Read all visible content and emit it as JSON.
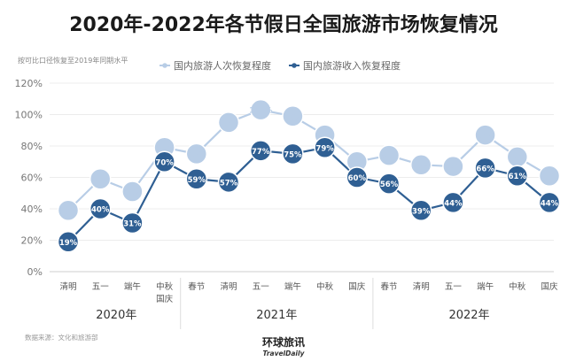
{
  "chart_data": {
    "type": "line",
    "title": "2020年-2022年各节假日全国旅游市场恢复情况",
    "subtitle": "按可比口径恢复至2019年同期水平",
    "source": "数据来源：文化和旅游部",
    "brand": {
      "name": "环球旅讯",
      "sub": "TravelDaily"
    },
    "ylim": [
      0,
      120
    ],
    "yticks": [
      "0%",
      "20%",
      "40%",
      "60%",
      "80%",
      "100%",
      "120%"
    ],
    "categories": [
      "清明",
      "五一",
      "端午",
      "中秋\n国庆",
      "春节",
      "清明",
      "五一",
      "端午",
      "中秋",
      "国庆",
      "春节",
      "清明",
      "五一",
      "端午",
      "中秋",
      "国庆"
    ],
    "years": [
      {
        "label": "2020年",
        "from": 0,
        "to": 3
      },
      {
        "label": "2021年",
        "from": 4,
        "to": 9
      },
      {
        "label": "2022年",
        "from": 10,
        "to": 15
      }
    ],
    "series": [
      {
        "name": "国内旅游人次恢复程度",
        "color": "#b8cde6",
        "label_color": "#b8cde6",
        "values": [
          39,
          59,
          51,
          79,
          75,
          95,
          103,
          99,
          87,
          70,
          74,
          68,
          67,
          87,
          73,
          61
        ],
        "labels": [
          "39%",
          "59%",
          "51%",
          "79%",
          "75%",
          "95%",
          "103%",
          "99%",
          "87%",
          "70%",
          "74%",
          "68%",
          "67%",
          "87%",
          "73%",
          "61%"
        ]
      },
      {
        "name": "国内旅游收入恢复程度",
        "color": "#2f5f93",
        "label_color": "#ffffff",
        "values": [
          19,
          40,
          31,
          70,
          59,
          57,
          77,
          75,
          79,
          60,
          56,
          39,
          44,
          66,
          61,
          44
        ],
        "labels": [
          "19%",
          "40%",
          "31%",
          "70%",
          "59%",
          "57%",
          "77%",
          "75%",
          "79%",
          "60%",
          "56%",
          "39%",
          "44%",
          "66%",
          "61%",
          "44%"
        ]
      }
    ],
    "grid": true,
    "legend": "top"
  }
}
